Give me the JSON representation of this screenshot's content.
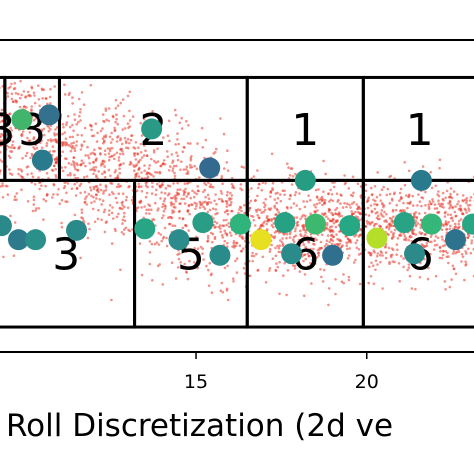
{
  "chart_data": {
    "type": "scatter",
    "title": "",
    "xlabel": "Roll Discretization (2d ve",
    "ylabel": "",
    "xlim": [
      9.2,
      23.2
    ],
    "ylim": [
      0,
      1
    ],
    "grid": false,
    "x_ticks": [
      {
        "value": 15,
        "label": "15"
      },
      {
        "value": 20,
        "label": "20"
      }
    ],
    "regions": [
      {
        "label": "3",
        "x_range": [
          9.2,
          9.4
        ],
        "y_range": [
          0.55,
          0.88
        ]
      },
      {
        "label": "3",
        "x_range": [
          9.4,
          11.0
        ],
        "y_range": [
          0.55,
          0.88
        ]
      },
      {
        "label": "2",
        "x_range": [
          11.0,
          16.5
        ],
        "y_range": [
          0.55,
          0.88
        ]
      },
      {
        "label": "1",
        "x_range": [
          16.5,
          19.9
        ],
        "y_range": [
          0.55,
          0.88
        ]
      },
      {
        "label": "1",
        "x_range": [
          19.9,
          23.2
        ],
        "y_range": [
          0.55,
          0.88
        ]
      },
      {
        "label": "3",
        "x_range": [
          9.2,
          13.2
        ],
        "y_range": [
          0.08,
          0.55
        ]
      },
      {
        "label": "5",
        "x_range": [
          13.2,
          16.5
        ],
        "y_range": [
          0.08,
          0.55
        ]
      },
      {
        "label": "6",
        "x_range": [
          16.5,
          19.9
        ],
        "y_range": [
          0.08,
          0.55
        ]
      },
      {
        "label": "6",
        "x_range": [
          19.9,
          23.2
        ],
        "y_range": [
          0.08,
          0.55
        ]
      }
    ],
    "series": [
      {
        "kind": "samples",
        "color": "#e8392c",
        "count": 2600,
        "description_x_range": [
          9.2,
          23.2
        ]
      },
      {
        "kind": "markers",
        "points": [
          {
            "x": 9.9,
            "y": 0.745,
            "color": "#40b56b"
          },
          {
            "x": 10.7,
            "y": 0.76,
            "color": "#33718e"
          },
          {
            "x": 10.5,
            "y": 0.615,
            "color": "#2a7a8e"
          },
          {
            "x": 11.5,
            "y": 0.39,
            "color": "#2a8a8a"
          },
          {
            "x": 13.7,
            "y": 0.715,
            "color": "#2a9a86"
          },
          {
            "x": 15.4,
            "y": 0.59,
            "color": "#346a8f"
          },
          {
            "x": 18.2,
            "y": 0.55,
            "color": "#269d83"
          },
          {
            "x": 21.6,
            "y": 0.55,
            "color": "#2a7a8e"
          },
          {
            "x": 9.3,
            "y": 0.405,
            "color": "#2a8a8a"
          },
          {
            "x": 9.8,
            "y": 0.36,
            "color": "#2d7a8d"
          },
          {
            "x": 10.3,
            "y": 0.36,
            "color": "#2b8f8a"
          },
          {
            "x": 13.5,
            "y": 0.395,
            "color": "#28a585"
          },
          {
            "x": 14.5,
            "y": 0.36,
            "color": "#2c8c8b"
          },
          {
            "x": 15.2,
            "y": 0.415,
            "color": "#2a9d86"
          },
          {
            "x": 15.7,
            "y": 0.31,
            "color": "#2a8c8a"
          },
          {
            "x": 16.3,
            "y": 0.41,
            "color": "#2fb47d"
          },
          {
            "x": 16.9,
            "y": 0.36,
            "color": "#e6e020"
          },
          {
            "x": 17.6,
            "y": 0.415,
            "color": "#27a184"
          },
          {
            "x": 17.8,
            "y": 0.315,
            "color": "#2a8b8a"
          },
          {
            "x": 18.5,
            "y": 0.41,
            "color": "#3cb96f"
          },
          {
            "x": 19.0,
            "y": 0.31,
            "color": "#30708e"
          },
          {
            "x": 19.5,
            "y": 0.405,
            "color": "#25a883"
          },
          {
            "x": 20.3,
            "y": 0.365,
            "color": "#b5de2b"
          },
          {
            "x": 21.1,
            "y": 0.415,
            "color": "#28a385"
          },
          {
            "x": 21.4,
            "y": 0.315,
            "color": "#2c8a8a"
          },
          {
            "x": 21.9,
            "y": 0.41,
            "color": "#35b779"
          },
          {
            "x": 22.6,
            "y": 0.36,
            "color": "#2e738e"
          },
          {
            "x": 23.1,
            "y": 0.41,
            "color": "#29a784"
          }
        ]
      }
    ]
  }
}
